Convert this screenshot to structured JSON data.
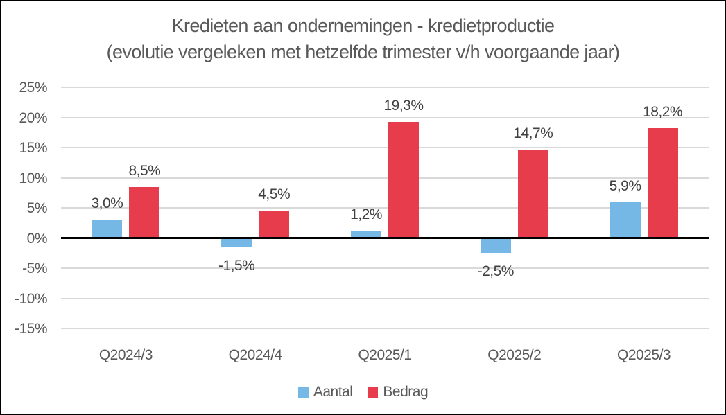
{
  "window": {
    "background": "#FFFFFF",
    "border_color": "#000000"
  },
  "chart_data": {
    "type": "bar",
    "title": "Kredieten aan ondernemingen - kredietproductie",
    "subtitle": "(evolutie vergeleken met hetzelfde trimester v/h voorgaande jaar)",
    "categories": [
      "Q2024/3",
      "Q2024/4",
      "Q2025/1",
      "Q2025/2",
      "Q2025/3"
    ],
    "series": [
      {
        "name": "Aantal",
        "color": "#75B8E6",
        "values": [
          3.0,
          -1.5,
          1.2,
          -2.5,
          5.9
        ],
        "labels": [
          "3,0%",
          "-1,5%",
          "1,2%",
          "-2,5%",
          "5,9%"
        ]
      },
      {
        "name": "Bedrag",
        "color": "#E73C4C",
        "values": [
          8.5,
          4.5,
          19.3,
          14.7,
          18.2
        ],
        "labels": [
          "8,5%",
          "4,5%",
          "19,3%",
          "14,7%",
          "18,2%"
        ]
      }
    ],
    "y_axis": {
      "min": -15,
      "max": 25,
      "step": 5,
      "unit": "%",
      "tick_labels": [
        "25%",
        "20%",
        "15%",
        "10%",
        "5%",
        "0%",
        "-5%",
        "-10%",
        "-15%"
      ]
    },
    "grid": true,
    "zero_axis_color": "#000000",
    "gridline_color": "#D9D9D9",
    "text_colors": {
      "title": "#595959",
      "axis_labels": "#595959",
      "data_labels": "#404040"
    },
    "legend_position": "bottom"
  }
}
